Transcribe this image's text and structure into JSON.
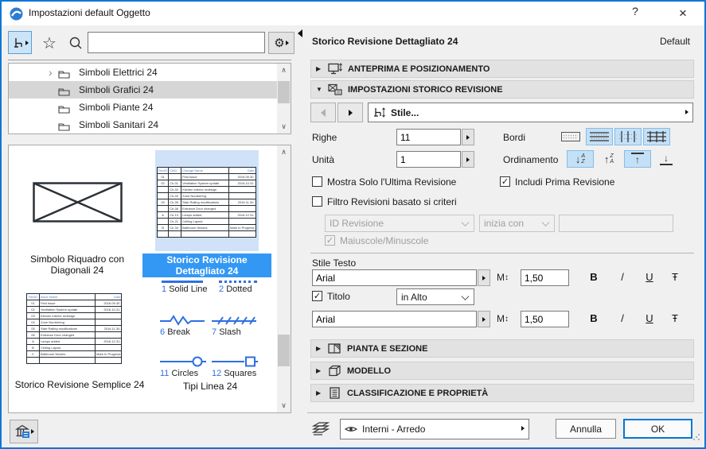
{
  "window": {
    "title": "Impostazioni default Oggetto",
    "help": "?"
  },
  "icons": {
    "close": "×",
    "star": "☆",
    "gear": "⚙",
    "chevron_up": "∧",
    "chevron_down": "∨",
    "expander": "›",
    "arrow_up": "↑",
    "arrow_down": "↓",
    "updown": "↕",
    "letter_a": "A",
    "letter_z": "Z",
    "check": "✓"
  },
  "left": {
    "search_value": "",
    "tree": [
      {
        "label": "Simboli Elettrici 24"
      },
      {
        "label": "Simboli Grafici 24"
      },
      {
        "label": "Simboli Piante 24"
      },
      {
        "label": "Simboli Sanitari 24"
      }
    ],
    "previews": {
      "item1_label": "Simbolo Riquadro con Diagonali 24",
      "item2_label": "Storico Revisione Dettagliato 24",
      "item3_label": "Storico Revisione Semplice 24",
      "item4_label": "Tipi Linea 24",
      "detailed_table": {
        "header": [
          "RevID",
          "ChID",
          "Change Name",
          "Date"
        ],
        "rows": [
          [
            "01",
            "",
            "First Issue",
            "2016.09.30."
          ],
          [
            "02",
            "Ch-01",
            "Ventilation System update",
            "2016.10.31."
          ],
          [
            "",
            "Ch-02",
            "Kitchen interior redesign",
            ""
          ],
          [
            "",
            "Ch-03",
            "Zone Numbering",
            ""
          ],
          [
            "03",
            "Ch-05",
            "Stair Railing modifications",
            "2016.11.30."
          ],
          [
            "",
            "Ch-06",
            "Entrance Door changed",
            ""
          ],
          [
            "A",
            "Ch-13",
            "Lamps added",
            "2016.12.31."
          ],
          [
            "",
            "Ch-21",
            "Ceiling Layout",
            ""
          ],
          [
            "B",
            "Ch-34",
            "Bathroom fixtures",
            "Mark In Progress"
          ],
          [
            "",
            "",
            "",
            ""
          ]
        ]
      },
      "simple_table": {
        "header": [
          "RevID",
          "Issue Name",
          "Date"
        ],
        "rows": [
          [
            "01",
            "First Issue",
            "2016.09.30."
          ],
          [
            "02",
            "Ventilation System update",
            "2016.10.31."
          ],
          [
            "03",
            "Kitchen interior redesign",
            ""
          ],
          [
            "04",
            "Zone Numbering",
            ""
          ],
          [
            "05",
            "Stair Railing modifications",
            "2016.11.30."
          ],
          [
            "06",
            "Entrance Door changed",
            ""
          ],
          [
            "A",
            "Lamps added",
            "2016.12.31."
          ],
          [
            "B",
            "Ceiling Layout",
            ""
          ],
          [
            "C",
            "Bathroom fixtures",
            "Mark In Progress"
          ],
          [
            "",
            "",
            ""
          ]
        ]
      },
      "line_types": [
        {
          "num": "1",
          "name": "Solid Line"
        },
        {
          "num": "2",
          "name": "Dotted"
        },
        {
          "num": "6",
          "name": "Break"
        },
        {
          "num": "7",
          "name": "Slash"
        },
        {
          "num": "11",
          "name": "Circles"
        },
        {
          "num": "12",
          "name": "Squares"
        }
      ]
    }
  },
  "right": {
    "title": "Storico Revisione Dettagliato 24",
    "default_label": "Default",
    "sections": {
      "anteprima": "ANTEPRIMA E POSIZIONAMENTO",
      "impostazioni": "IMPOSTAZIONI STORICO REVISIONE",
      "pianta": "PIANTA E SEZIONE",
      "modello": "MODELLO",
      "classificazione": "CLASSIFICAZIONE E PROPRIETÀ"
    },
    "stile_button": "Stile...",
    "fields": {
      "righe_label": "Righe",
      "righe_value": "11",
      "unita_label": "Unità",
      "unita_value": "1",
      "bordi_label": "Bordi",
      "ordinamento_label": "Ordinamento"
    },
    "checks": {
      "mostra": "Mostra Solo l'Ultima Revisione",
      "includi": "Includi Prima Revisione",
      "filtro": "Filtro Revisioni basato si criteri",
      "maiuscole": "Maiuscole/Minuscole"
    },
    "filter": {
      "field": "ID Revisione",
      "op": "inizia con",
      "value": ""
    },
    "stile_testo": {
      "label": "Stile Testo",
      "font1": "Arial",
      "size1": "1,50",
      "titolo_label": "Titolo",
      "titolo_pos": "in Alto",
      "font2": "Arial",
      "size2": "1,50",
      "bold": "B",
      "italic": "/",
      "underline": "U",
      "strike": "Ŧ"
    },
    "footer": {
      "layer": "Interni - Arredo",
      "cancel": "Annulla",
      "ok": "OK"
    }
  },
  "colors": {
    "accent": "#1076d6",
    "selection": "#3398f4",
    "control_selected": "#c4e0f6",
    "table_blue": "#4a7fd0",
    "line_blue": "#2f6fe3"
  }
}
